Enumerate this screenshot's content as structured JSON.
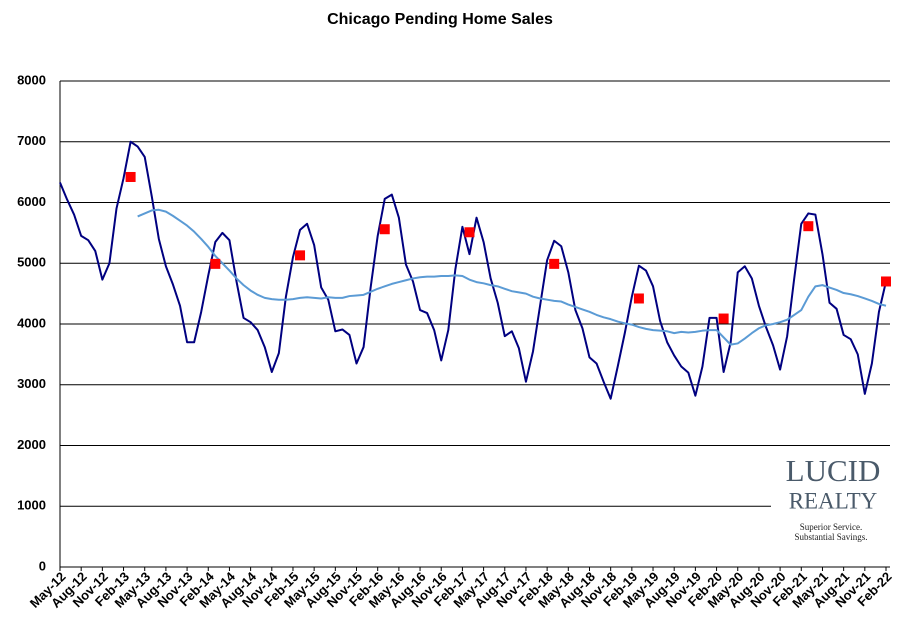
{
  "chart_data": {
    "type": "line",
    "title": "Chicago Pending Home Sales",
    "categories": [
      "May-12",
      null,
      null,
      "Aug-12",
      null,
      null,
      "Nov-12",
      null,
      null,
      "Feb-13",
      null,
      null,
      "May-13",
      null,
      null,
      "Aug-13",
      null,
      null,
      "Nov-13",
      null,
      null,
      "Feb-14",
      null,
      null,
      "May-14",
      null,
      null,
      "Aug-14",
      null,
      null,
      "Nov-14",
      null,
      null,
      "Feb-15",
      null,
      null,
      "May-15",
      null,
      null,
      "Aug-15",
      null,
      null,
      "Nov-15",
      null,
      null,
      "Feb-16",
      null,
      null,
      "May-16",
      null,
      null,
      "Aug-16",
      null,
      null,
      "Nov-16",
      null,
      null,
      "Feb-17",
      null,
      null,
      "May-17",
      null,
      null,
      "Aug-17",
      null,
      null,
      "Nov-17",
      null,
      null,
      "Feb-18",
      null,
      null,
      "May-18",
      null,
      null,
      "Aug-18",
      null,
      null,
      "Nov-18",
      null,
      null,
      "Feb-19",
      null,
      null,
      "May-19",
      null,
      null,
      "Aug-19",
      null,
      null,
      "Nov-19",
      null,
      null,
      "Feb-20",
      null,
      null,
      "May-20",
      null,
      null,
      "Aug-20",
      null,
      null,
      "Nov-20",
      null,
      null,
      "Feb-21",
      null,
      null,
      "May-21",
      null,
      null,
      "Aug-21",
      null,
      null,
      "Nov-21",
      null,
      null,
      "Feb-22"
    ],
    "series": [
      {
        "color": "#000080",
        "style": "line",
        "values": [
          6330,
          6050,
          5800,
          5450,
          5380,
          5200,
          4730,
          5000,
          5900,
          6400,
          7000,
          6920,
          6750,
          6100,
          5400,
          4950,
          4650,
          4300,
          3700,
          3700,
          4200,
          4800,
          5350,
          5500,
          5380,
          4700,
          4100,
          4030,
          3900,
          3620,
          3210,
          3520,
          4450,
          5100,
          5550,
          5650,
          5300,
          4600,
          4400,
          3880,
          3910,
          3820,
          3350,
          3620,
          4600,
          5450,
          6060,
          6130,
          5750,
          4980,
          4700,
          4230,
          4180,
          3900,
          3400,
          3900,
          4900,
          5600,
          5150,
          5750,
          5350,
          4750,
          4350,
          3800,
          3880,
          3600,
          3050,
          3550,
          4300,
          5050,
          5370,
          5280,
          4850,
          4230,
          3930,
          3450,
          3350,
          3050,
          2770,
          3300,
          3850,
          4450,
          4960,
          4880,
          4620,
          4050,
          3700,
          3480,
          3300,
          3200,
          2820,
          3300,
          4100,
          4100,
          3210,
          3700,
          4850,
          4950,
          4750,
          4300,
          3950,
          3650,
          3250,
          3800,
          4750,
          5650,
          5820,
          5800,
          5150,
          4350,
          4250,
          3820,
          3750,
          3500,
          2850,
          3350,
          4200,
          4700
        ]
      },
      {
        "color": "#5b9bd5",
        "style": "line",
        "values": [
          null,
          null,
          null,
          null,
          null,
          null,
          null,
          null,
          null,
          null,
          null,
          5770,
          5820,
          5870,
          5880,
          5850,
          5780,
          5700,
          5620,
          5520,
          5400,
          5270,
          5120,
          5000,
          4880,
          4750,
          4640,
          4550,
          4480,
          4430,
          4410,
          4400,
          4400,
          4410,
          4430,
          4440,
          4430,
          4420,
          4440,
          4430,
          4430,
          4460,
          4470,
          4480,
          4530,
          4580,
          4620,
          4660,
          4690,
          4720,
          4750,
          4770,
          4780,
          4780,
          4790,
          4790,
          4800,
          4790,
          4730,
          4690,
          4670,
          4640,
          4620,
          4580,
          4540,
          4520,
          4500,
          4450,
          4420,
          4400,
          4380,
          4370,
          4320,
          4280,
          4240,
          4200,
          4150,
          4110,
          4080,
          4040,
          4010,
          3990,
          3950,
          3920,
          3900,
          3890,
          3880,
          3850,
          3870,
          3860,
          3870,
          3890,
          3900,
          3900,
          3780,
          3660,
          3680,
          3760,
          3850,
          3930,
          3980,
          4000,
          4030,
          4070,
          4150,
          4230,
          4450,
          4620,
          4640,
          4600,
          4560,
          4510,
          4490,
          4460,
          4420,
          4380,
          4330,
          4300
        ]
      },
      {
        "color": "#ff0000",
        "style": "square",
        "values": [
          null,
          null,
          null,
          null,
          null,
          null,
          null,
          null,
          null,
          null,
          6420,
          null,
          null,
          null,
          null,
          null,
          null,
          null,
          null,
          null,
          null,
          null,
          4990,
          null,
          null,
          null,
          null,
          null,
          null,
          null,
          null,
          null,
          null,
          null,
          5130,
          null,
          null,
          null,
          null,
          null,
          null,
          null,
          null,
          null,
          null,
          null,
          5560,
          null,
          null,
          null,
          null,
          null,
          null,
          null,
          null,
          null,
          null,
          null,
          5510,
          null,
          null,
          null,
          null,
          null,
          null,
          null,
          null,
          null,
          null,
          null,
          4990,
          null,
          null,
          null,
          null,
          null,
          null,
          null,
          null,
          null,
          null,
          null,
          4420,
          null,
          null,
          null,
          null,
          null,
          null,
          null,
          null,
          null,
          null,
          null,
          4090,
          null,
          null,
          null,
          null,
          null,
          null,
          null,
          null,
          null,
          null,
          null,
          5610,
          null,
          null,
          null,
          null,
          null,
          null,
          null,
          null,
          null,
          null,
          4700
        ]
      }
    ],
    "ylim": [
      0,
      8000
    ],
    "yticks": [
      0,
      1000,
      2000,
      3000,
      4000,
      5000,
      6000,
      7000,
      8000
    ],
    "grid": true
  },
  "logo": {
    "line1": "LUCID",
    "line2": "REALTY",
    "tagline1": "Superior Service.",
    "tagline2": "Substantial Savings."
  }
}
